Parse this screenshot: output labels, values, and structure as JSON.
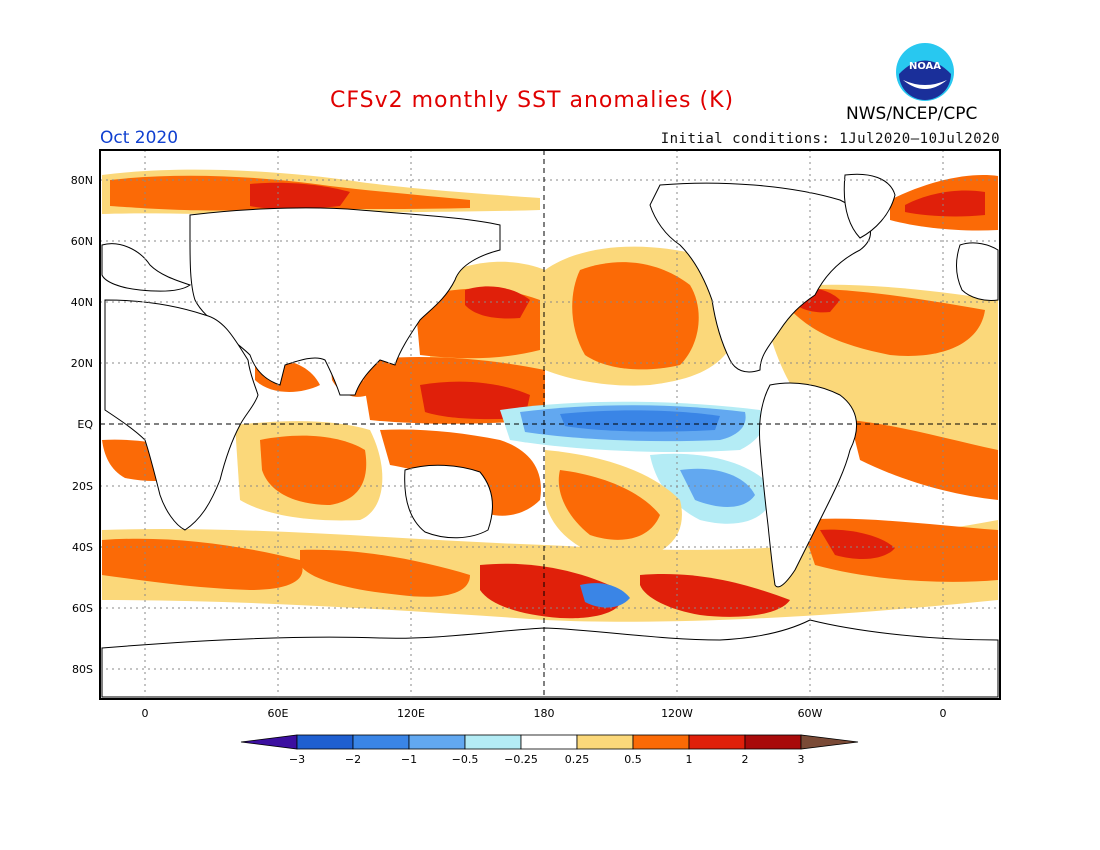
{
  "header": {
    "title": "CFSv2 monthly SST anomalies (K)",
    "month": "Oct 2020",
    "initial_conditions": "Initial conditions: 1Jul2020–10Jul2020",
    "agency": "NWS/NCEP/CPC",
    "logo_text": "NOAA",
    "logo_icon": "noaa-logo-icon"
  },
  "map": {
    "lat_ticks": [
      "80N",
      "60N",
      "40N",
      "20N",
      "EQ",
      "20S",
      "40S",
      "60S",
      "80S"
    ],
    "lon_ticks": [
      "0",
      "60E",
      "120E",
      "180",
      "120W",
      "60W",
      "0"
    ]
  },
  "colorbar": {
    "labels": [
      "−3",
      "−2",
      "−1",
      "−0.5",
      "−0.25",
      "0.25",
      "0.5",
      "1",
      "2",
      "3"
    ],
    "colors": [
      "#3c0fa0",
      "#1f5fd0",
      "#3a85e6",
      "#62a8f0",
      "#b4ecf5",
      "#ffffff",
      "#fbd87a",
      "#fb6a06",
      "#e0200a",
      "#a80a0a",
      "#7a4a36"
    ]
  }
}
